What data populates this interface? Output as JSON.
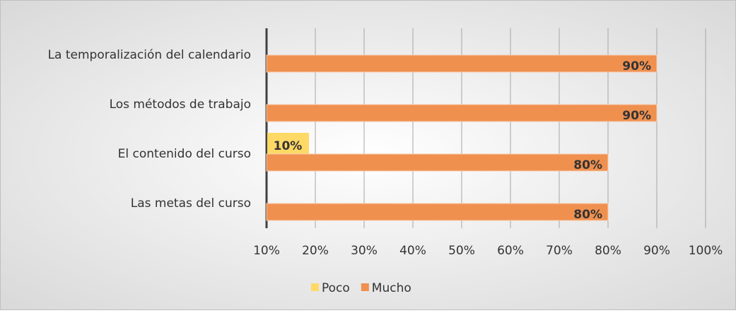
{
  "chart_data": {
    "type": "bar",
    "orientation": "horizontal",
    "categories": [
      "La temporalización del calendario",
      "Los   métodos de trabajo",
      "El contenido del curso",
      "Las metas del curso"
    ],
    "series": [
      {
        "name": "Poco",
        "color": "#ffd966",
        "values": [
          null,
          null,
          10,
          null
        ],
        "value_labels": [
          null,
          null,
          "10%",
          null
        ]
      },
      {
        "name": "Mucho",
        "color": "#f0904f",
        "values": [
          90,
          90,
          80,
          80
        ],
        "value_labels": [
          "90%",
          "90%",
          "80%",
          "80%"
        ]
      }
    ],
    "xlim": [
      10,
      100
    ],
    "xticks": [
      {
        "value": 10,
        "label": "10%"
      },
      {
        "value": 20,
        "label": "20%"
      },
      {
        "value": 30,
        "label": "30%"
      },
      {
        "value": 40,
        "label": "40%"
      },
      {
        "value": 50,
        "label": "50%"
      },
      {
        "value": 60,
        "label": "60%"
      },
      {
        "value": 70,
        "label": "70%"
      },
      {
        "value": 80,
        "label": "80%"
      },
      {
        "value": 90,
        "label": "90%"
      },
      {
        "value": 100,
        "label": "100%"
      }
    ],
    "grid": true,
    "legend": "bottom"
  }
}
